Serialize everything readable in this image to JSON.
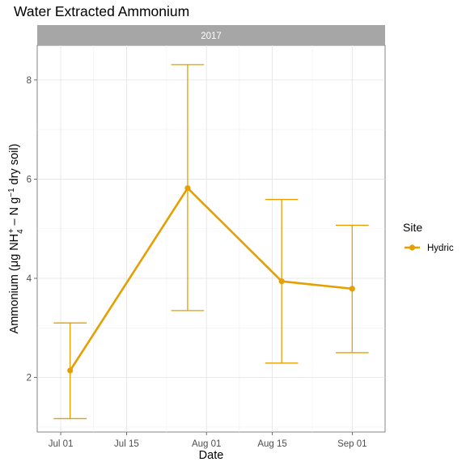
{
  "chart_data": {
    "type": "line",
    "title": "Water Extracted Ammonium",
    "facet_label": "2017",
    "xlabel": "Date",
    "ylabel": {
      "prefix": "Ammonium (",
      "mu": "μ",
      "g": "g NH",
      "sub": "4",
      "sup": "+",
      "middle": " – N g",
      "sup2": "−1",
      "suffix": " dry soil)"
    },
    "x_ticks": [
      {
        "date": "2017-07-01",
        "label": "Jul 01"
      },
      {
        "date": "2017-07-15",
        "label": "Jul 15"
      },
      {
        "date": "2017-08-01",
        "label": "Aug 01"
      },
      {
        "date": "2017-08-15",
        "label": "Aug 15"
      },
      {
        "date": "2017-09-01",
        "label": "Sep 01"
      }
    ],
    "xlim": [
      "2017-06-26",
      "2017-09-08"
    ],
    "y_ticks": [
      2,
      4,
      6,
      8
    ],
    "ylim": [
      0.9,
      8.7
    ],
    "grid": true,
    "legend": {
      "title": "Site",
      "position": "right"
    },
    "series": [
      {
        "name": "Hydric",
        "color": "#E69F00",
        "points": [
          {
            "x": "2017-07-03",
            "y": 2.14,
            "ymin": 1.17,
            "ymax": 3.1
          },
          {
            "x": "2017-07-28",
            "y": 5.82,
            "ymin": 3.35,
            "ymax": 8.31
          },
          {
            "x": "2017-08-17",
            "y": 3.94,
            "ymin": 2.29,
            "ymax": 5.59
          },
          {
            "x": "2017-09-01",
            "y": 3.79,
            "ymin": 2.5,
            "ymax": 5.07
          }
        ]
      }
    ]
  }
}
